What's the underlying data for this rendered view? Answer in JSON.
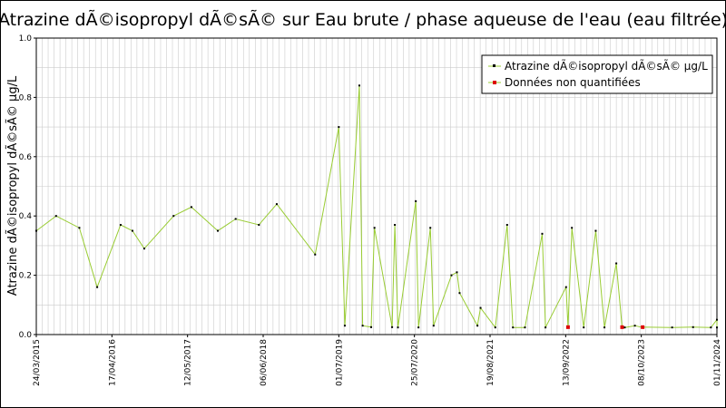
{
  "chart_data": {
    "type": "line",
    "title": "Atrazine dÃ©isopropyl dÃ©sÃ© sur Eau brute / phase aqueuse de l'eau (eau filtrée)",
    "xlabel": "",
    "ylabel": "Atrazine dÃ©isopropyl dÃ©sÃ© µg/L",
    "ylim": [
      0,
      1.0
    ],
    "yticks": [
      "0.0",
      "0.2",
      "0.4",
      "0.6",
      "0.8",
      "1.0"
    ],
    "xticks": [
      "24/03/2015",
      "17/04/2016",
      "12/05/2017",
      "06/06/2018",
      "01/07/2019",
      "25/07/2020",
      "19/08/2021",
      "13/09/2022",
      "08/10/2023",
      "01/11/2024"
    ],
    "xlim": [
      "2015-03-24",
      "2024-11-01"
    ],
    "grid": true,
    "legend_position": "top-right",
    "line_color": "#99cc33",
    "series": [
      {
        "name": "Atrazine dÃ©isopropyl dÃ©sÃ© µg/L",
        "color": "#000000",
        "x": [
          "2015-03-24",
          "2015-07-04",
          "2015-11-01",
          "2016-02-01",
          "2016-06-01",
          "2016-08-01",
          "2016-10-01",
          "2017-03-01",
          "2017-06-01",
          "2017-10-15",
          "2018-01-15",
          "2018-05-15",
          "2018-08-15",
          "2019-03-01",
          "2019-07-01",
          "2019-10-15",
          "2020-01-01",
          "2020-04-15",
          "2020-08-01",
          "2020-10-15",
          "2021-02-01",
          "2021-03-01",
          "2021-07-01",
          "2021-11-15",
          "2022-05-15",
          "2022-09-15",
          "2022-10-15",
          "2023-02-15",
          "2023-06-01",
          "2023-09-05",
          "2024-07-01",
          "2024-11-01",
          "2019-08-01",
          "2019-11-01",
          "2019-12-15",
          "2020-04-01",
          "2020-05-01",
          "2020-08-15",
          "2020-11-01",
          "2021-03-15",
          "2021-06-15",
          "2021-09-15",
          "2021-12-15",
          "2022-02-15",
          "2022-06-01",
          "2022-12-15",
          "2023-04-01",
          "2023-07-15",
          "2023-10-15",
          "2024-03-15",
          "2024-10-01",
          "2024-11-01"
        ],
        "y": [
          0.35,
          0.4,
          0.36,
          0.16,
          0.37,
          0.35,
          0.29,
          0.4,
          0.43,
          0.35,
          0.39,
          0.37,
          0.44,
          0.27,
          0.7,
          0.84,
          0.36,
          0.37,
          0.45,
          0.36,
          0.2,
          0.21,
          0.09,
          0.37,
          0.34,
          0.16,
          0.36,
          0.35,
          0.24,
          0.03,
          0.025,
          0.05,
          0.03,
          0.03,
          0.025,
          0.025,
          0.024,
          0.024,
          0.03,
          0.14,
          0.03,
          0.024,
          0.024,
          0.024,
          0.024,
          0.024,
          0.024,
          0.024,
          0.024,
          0.024,
          0.024,
          0.024
        ]
      },
      {
        "name": "Données non quantifiées",
        "color": "#dd0000",
        "x": [
          "2022-09-25",
          "2023-07-01",
          "2023-10-15"
        ],
        "y": [
          0.025,
          0.025,
          0.025
        ]
      }
    ]
  }
}
